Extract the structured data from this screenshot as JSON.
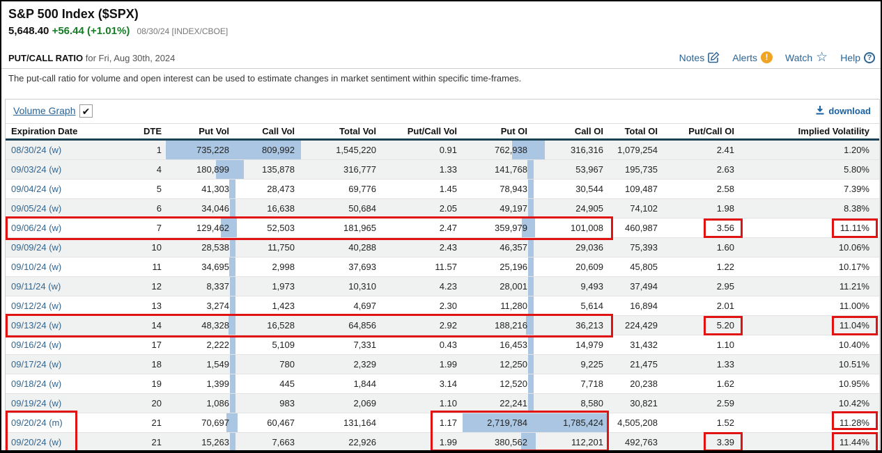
{
  "header": {
    "title": "S&P 500 Index ($SPX)",
    "price": "5,648.40",
    "change": "+56.44 (+1.01%)",
    "timestamp": "08/30/24 [INDEX/CBOE]"
  },
  "section": {
    "title": "PUT/CALL RATIO",
    "subtitle": "for Fri, Aug 30th, 2024",
    "links": [
      {
        "label": "Notes",
        "icon": "notes-icon"
      },
      {
        "label": "Alerts",
        "icon": "alert-icon"
      },
      {
        "label": "Watch",
        "icon": "star-icon"
      },
      {
        "label": "Help",
        "icon": "help-icon"
      }
    ]
  },
  "description": "The put-call ratio for volume and open interest can be used to estimate changes in market sentiment within specific time-frames.",
  "table_toolbar": {
    "volume_graph_label": "Volume Graph",
    "volume_graph_checked": true,
    "checkmark": "✔",
    "download_label": "download"
  },
  "table": {
    "columns": [
      "Expiration Date",
      "DTE",
      "Put Vol",
      "Call Vol",
      "Total Vol",
      "Put/Call Vol",
      "Put OI",
      "Call OI",
      "Total OI",
      "Put/Call OI",
      "Implied Volatility"
    ],
    "rows": [
      [
        "08/30/24 (w)",
        "1",
        "735,228",
        "809,992",
        "1,545,220",
        "0.91",
        "762,938",
        "316,316",
        "1,079,254",
        "2.41",
        "1.20%"
      ],
      [
        "09/03/24 (w)",
        "4",
        "180,899",
        "135,878",
        "316,777",
        "1.33",
        "141,768",
        "53,967",
        "195,735",
        "2.63",
        "5.80%"
      ],
      [
        "09/04/24 (w)",
        "5",
        "41,303",
        "28,473",
        "69,776",
        "1.45",
        "78,943",
        "30,544",
        "109,487",
        "2.58",
        "7.39%"
      ],
      [
        "09/05/24 (w)",
        "6",
        "34,046",
        "16,638",
        "50,684",
        "2.05",
        "49,197",
        "24,905",
        "74,102",
        "1.98",
        "8.38%"
      ],
      [
        "09/06/24 (w)",
        "7",
        "129,462",
        "52,503",
        "181,965",
        "2.47",
        "359,979",
        "101,008",
        "460,987",
        "3.56",
        "11.11%"
      ],
      [
        "09/09/24 (w)",
        "10",
        "28,538",
        "11,750",
        "40,288",
        "2.43",
        "46,357",
        "29,036",
        "75,393",
        "1.60",
        "10.06%"
      ],
      [
        "09/10/24 (w)",
        "11",
        "34,695",
        "2,998",
        "37,693",
        "11.57",
        "25,196",
        "20,609",
        "45,805",
        "1.22",
        "10.17%"
      ],
      [
        "09/11/24 (w)",
        "12",
        "8,337",
        "1,973",
        "10,310",
        "4.23",
        "28,001",
        "9,493",
        "37,494",
        "2.95",
        "11.21%"
      ],
      [
        "09/12/24 (w)",
        "13",
        "3,274",
        "1,423",
        "4,697",
        "2.30",
        "11,280",
        "5,614",
        "16,894",
        "2.01",
        "11.00%"
      ],
      [
        "09/13/24 (w)",
        "14",
        "48,328",
        "16,528",
        "64,856",
        "2.92",
        "188,216",
        "36,213",
        "224,429",
        "5.20",
        "11.04%"
      ],
      [
        "09/16/24 (w)",
        "17",
        "2,222",
        "5,109",
        "7,331",
        "0.43",
        "16,453",
        "14,979",
        "31,432",
        "1.10",
        "10.40%"
      ],
      [
        "09/17/24 (w)",
        "18",
        "1,549",
        "780",
        "2,329",
        "1.99",
        "12,250",
        "9,225",
        "21,475",
        "1.33",
        "10.51%"
      ],
      [
        "09/18/24 (w)",
        "19",
        "1,399",
        "445",
        "1,844",
        "3.14",
        "12,520",
        "7,718",
        "20,238",
        "1.62",
        "10.95%"
      ],
      [
        "09/19/24 (w)",
        "20",
        "1,086",
        "983",
        "2,069",
        "1.10",
        "22,241",
        "8,580",
        "30,821",
        "2.59",
        "10.42%"
      ],
      [
        "09/20/24 (m)",
        "21",
        "70,697",
        "60,467",
        "131,164",
        "1.17",
        "2,719,784",
        "1,785,424",
        "4,505,208",
        "1.52",
        "11.28%"
      ],
      [
        "09/20/24 (w)",
        "21",
        "15,263",
        "7,663",
        "22,926",
        "1.99",
        "380,562",
        "112,201",
        "492,763",
        "3.39",
        "11.44%"
      ]
    ]
  },
  "highlights": [
    {
      "row": "09/06/24 (w)",
      "cells": "Expiration Date through Call OI"
    },
    {
      "row": "09/06/24 (w)",
      "cells": "Put/Call OI (3.56)"
    },
    {
      "row": "09/06/24 (w)",
      "cells": "Implied Volatility (11.11%)"
    },
    {
      "row": "09/13/24 (w)",
      "cells": "Expiration Date through Call OI"
    },
    {
      "row": "09/13/24 (w)",
      "cells": "Put/Call OI (5.20)"
    },
    {
      "row": "09/13/24 (w)",
      "cells": "Implied Volatility (11.04%)"
    },
    {
      "row": "09/20/24 (m) + 09/20/24 (w)",
      "cells": "Expiration Date"
    },
    {
      "row": "09/20/24 (m) + 09/20/24 (w)",
      "cells": "Put/Call Vol through Call OI"
    },
    {
      "row": "09/20/24 (w)",
      "cells": "Put/Call OI (3.39)"
    },
    {
      "row": "09/20/24 (m)",
      "cells": "Implied Volatility (11.28%)"
    },
    {
      "row": "09/20/24 (w)",
      "cells": "Implied Volatility (11.44%)"
    }
  ],
  "colors": {
    "link_blue": "#2a6496",
    "date_link_blue": "#33658f",
    "change_green": "#157c26",
    "volume_bar_blue": "#aac6e2",
    "highlight_red": "#e01212",
    "header_underline": "#1b4156",
    "alert_orange": "#f0a424",
    "row_stripe": "#f0f1f1"
  }
}
